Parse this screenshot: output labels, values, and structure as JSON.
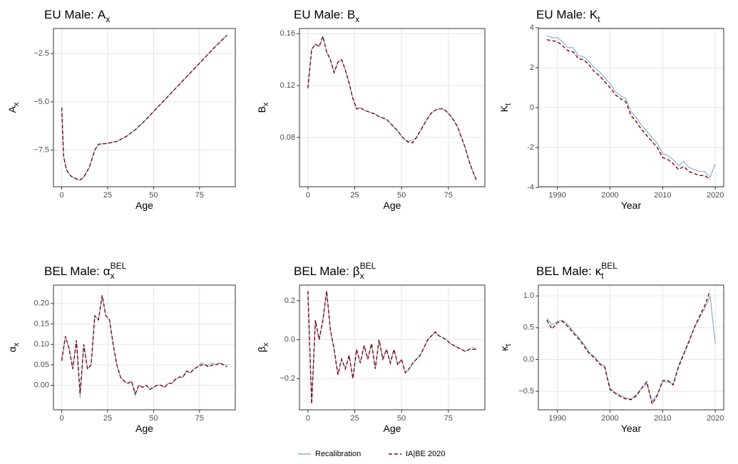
{
  "chart_data": [
    {
      "type": "line",
      "title": "EU Male:",
      "title_symbol": "A",
      "title_sub": "x",
      "xlabel": "Age",
      "ylabel_symbol": "A",
      "ylabel_sub": "x",
      "x": [
        0,
        1,
        2,
        3,
        5,
        8,
        10,
        12,
        15,
        18,
        20,
        25,
        30,
        35,
        40,
        45,
        50,
        55,
        60,
        65,
        70,
        75,
        80,
        85,
        90
      ],
      "xlim": [
        -4.5,
        94.5
      ],
      "xticks": [
        0,
        25,
        50,
        75
      ],
      "ylim": [
        -9.4,
        -1.2
      ],
      "yticks": [
        {
          "value": -7.5,
          "label": "−7.5"
        },
        {
          "value": -5,
          "label": "−5.0"
        },
        {
          "value": -2.5,
          "label": "−2.5"
        }
      ],
      "grid": true,
      "series": [
        {
          "name": "Recalibration",
          "color": "#7fb3d8",
          "linestyle": "solid",
          "values": [
            -5.3,
            -7.8,
            -8.3,
            -8.6,
            -8.85,
            -9.0,
            -9.05,
            -8.9,
            -8.4,
            -7.5,
            -7.2,
            -7.15,
            -7.05,
            -6.8,
            -6.45,
            -6.0,
            -5.5,
            -5.0,
            -4.5,
            -4.0,
            -3.5,
            -3.0,
            -2.5,
            -2.0,
            -1.55
          ]
        },
        {
          "name": "IA|BE 2020",
          "color": "#8b0000",
          "linestyle": "dashed",
          "values": [
            -5.3,
            -7.8,
            -8.3,
            -8.6,
            -8.85,
            -9.0,
            -9.05,
            -8.9,
            -8.4,
            -7.5,
            -7.2,
            -7.15,
            -7.05,
            -6.8,
            -6.45,
            -6.0,
            -5.5,
            -5.0,
            -4.5,
            -4.0,
            -3.5,
            -3.0,
            -2.5,
            -2.0,
            -1.55
          ]
        }
      ]
    },
    {
      "type": "line",
      "title": "EU Male:",
      "title_symbol": "B",
      "title_sub": "x",
      "xlabel": "Age",
      "ylabel_symbol": "B",
      "ylabel_sub": "x",
      "x": [
        0,
        2,
        4,
        6,
        8,
        10,
        12,
        14,
        16,
        18,
        20,
        22,
        24,
        26,
        28,
        30,
        32,
        34,
        36,
        38,
        40,
        42,
        44,
        46,
        48,
        50,
        52,
        54,
        56,
        58,
        60,
        62,
        64,
        66,
        68,
        70,
        72,
        74,
        76,
        78,
        80,
        82,
        84,
        86,
        88,
        90
      ],
      "xlim": [
        -4.5,
        94.5
      ],
      "xticks": [
        0,
        25,
        50,
        75
      ],
      "ylim": [
        0.042,
        0.164
      ],
      "yticks": [
        0.08,
        0.12,
        0.16
      ],
      "grid": true,
      "series": [
        {
          "name": "Recalibration",
          "color": "#7fb3d8",
          "linestyle": "solid",
          "values": [
            0.118,
            0.148,
            0.152,
            0.15,
            0.158,
            0.146,
            0.14,
            0.13,
            0.138,
            0.14,
            0.132,
            0.122,
            0.11,
            0.102,
            0.103,
            0.101,
            0.1,
            0.099,
            0.098,
            0.096,
            0.095,
            0.094,
            0.091,
            0.088,
            0.085,
            0.081,
            0.078,
            0.077,
            0.078,
            0.08,
            0.085,
            0.09,
            0.095,
            0.099,
            0.101,
            0.102,
            0.102,
            0.1,
            0.097,
            0.093,
            0.088,
            0.08,
            0.072,
            0.062,
            0.054,
            0.047
          ]
        },
        {
          "name": "IA|BE 2020",
          "color": "#8b0000",
          "linestyle": "dashed",
          "values": [
            0.118,
            0.148,
            0.152,
            0.15,
            0.158,
            0.146,
            0.14,
            0.13,
            0.138,
            0.14,
            0.132,
            0.122,
            0.11,
            0.102,
            0.103,
            0.101,
            0.1,
            0.099,
            0.098,
            0.096,
            0.095,
            0.094,
            0.091,
            0.088,
            0.085,
            0.081,
            0.078,
            0.076,
            0.076,
            0.08,
            0.085,
            0.09,
            0.095,
            0.099,
            0.101,
            0.102,
            0.102,
            0.1,
            0.097,
            0.093,
            0.088,
            0.08,
            0.072,
            0.062,
            0.054,
            0.047
          ]
        }
      ]
    },
    {
      "type": "line",
      "title": "EU Male:",
      "title_symbol": "K",
      "title_sub": "t",
      "xlabel": "Year",
      "ylabel_symbol": "K",
      "ylabel_sub": "t",
      "x": [
        1988,
        1989,
        1990,
        1991,
        1992,
        1993,
        1994,
        1995,
        1996,
        1997,
        1998,
        1999,
        2000,
        2001,
        2002,
        2003,
        2004,
        2005,
        2006,
        2007,
        2008,
        2009,
        2010,
        2011,
        2012,
        2013,
        2014,
        2015,
        2016,
        2017,
        2018,
        2019,
        2020
      ],
      "xlim": [
        1986.4,
        2021.6
      ],
      "xticks": [
        1990,
        2000,
        2010,
        2020
      ],
      "ylim": [
        -3.96,
        3.96
      ],
      "yticks": [
        -4,
        -2,
        0,
        2,
        4
      ],
      "grid": true,
      "series": [
        {
          "name": "Recalibration",
          "color": "#7fb3d8",
          "linestyle": "solid",
          "values": [
            3.6,
            3.5,
            3.5,
            3.3,
            3.0,
            3.0,
            2.6,
            2.55,
            2.3,
            2.0,
            1.8,
            1.5,
            1.2,
            0.8,
            0.6,
            0.45,
            -0.2,
            -0.5,
            -0.9,
            -1.2,
            -1.5,
            -1.8,
            -2.3,
            -2.4,
            -2.6,
            -2.9,
            -2.7,
            -3.0,
            -3.1,
            -3.2,
            -3.2,
            -3.5,
            -2.8
          ]
        },
        {
          "name": "IA|BE 2020",
          "color": "#8b0000",
          "linestyle": "dashed",
          "values": [
            3.4,
            3.35,
            3.3,
            3.1,
            2.85,
            2.8,
            2.45,
            2.4,
            2.15,
            1.8,
            1.6,
            1.3,
            1.0,
            0.65,
            0.45,
            0.3,
            -0.4,
            -0.7,
            -1.1,
            -1.4,
            -1.7,
            -2.0,
            -2.5,
            -2.6,
            -2.8,
            -3.1,
            -2.95,
            -3.2,
            -3.3,
            -3.4,
            -3.4,
            -3.6,
            null
          ]
        }
      ]
    },
    {
      "type": "line",
      "title": "BEL Male:",
      "title_symbol": "α",
      "title_sub": "x",
      "title_sup": "BEL",
      "xlabel": "Age",
      "ylabel_symbol": "α",
      "ylabel_sub": "x",
      "x": [
        0,
        2,
        4,
        6,
        8,
        10,
        12,
        14,
        16,
        18,
        20,
        22,
        24,
        26,
        28,
        30,
        32,
        34,
        36,
        38,
        40,
        42,
        44,
        46,
        48,
        50,
        52,
        54,
        56,
        58,
        60,
        62,
        64,
        66,
        68,
        70,
        72,
        74,
        76,
        78,
        80,
        82,
        84,
        86,
        88,
        90
      ],
      "xlim": [
        -4.5,
        94.5
      ],
      "xticks": [
        0,
        25,
        50,
        75
      ],
      "ylim": [
        -0.06,
        0.245
      ],
      "yticks": [
        {
          "value": 0,
          "label": "0.00"
        },
        0.05,
        {
          "value": 0.1,
          "label": "0.10"
        },
        0.15,
        {
          "value": 0.2,
          "label": "0.20"
        }
      ],
      "grid": true,
      "series": [
        {
          "name": "Recalibration",
          "color": "#7fb3d8",
          "linestyle": "solid",
          "values": [
            0.06,
            0.12,
            0.09,
            0.04,
            0.11,
            -0.03,
            0.1,
            0.04,
            0.05,
            0.17,
            0.16,
            0.22,
            0.17,
            0.16,
            0.1,
            0.05,
            0.02,
            0.01,
            0.005,
            0.01,
            -0.025,
            0.0,
            -0.005,
            0.0,
            -0.01,
            -0.005,
            0.0,
            0.0,
            -0.005,
            0.005,
            0.005,
            0.015,
            0.02,
            0.02,
            0.035,
            0.03,
            0.04,
            0.045,
            0.055,
            0.05,
            0.05,
            0.055,
            0.05,
            0.055,
            0.05,
            0.05
          ]
        },
        {
          "name": "IA|BE 2020",
          "color": "#8b0000",
          "linestyle": "dashed",
          "values": [
            0.06,
            0.12,
            0.09,
            0.04,
            0.11,
            -0.02,
            0.1,
            0.04,
            0.05,
            0.17,
            0.16,
            0.22,
            0.17,
            0.16,
            0.1,
            0.05,
            0.02,
            0.01,
            0.005,
            0.01,
            -0.02,
            0.0,
            -0.005,
            0.0,
            -0.01,
            -0.005,
            0.0,
            0.0,
            -0.005,
            0.005,
            0.005,
            0.015,
            0.02,
            0.02,
            0.035,
            0.03,
            0.04,
            0.045,
            0.05,
            0.05,
            0.045,
            0.05,
            0.05,
            0.055,
            0.05,
            0.045
          ]
        }
      ]
    },
    {
      "type": "line",
      "title": "BEL Male:",
      "title_symbol": "β",
      "title_sub": "x",
      "title_sup": "BEL",
      "xlabel": "Age",
      "ylabel_symbol": "β",
      "ylabel_sub": "x",
      "x": [
        0,
        2,
        4,
        6,
        8,
        10,
        12,
        14,
        16,
        18,
        20,
        22,
        24,
        26,
        28,
        30,
        32,
        34,
        36,
        38,
        40,
        42,
        44,
        46,
        48,
        50,
        52,
        54,
        56,
        58,
        60,
        62,
        64,
        66,
        68,
        70,
        72,
        74,
        76,
        78,
        80,
        82,
        84,
        86,
        88,
        90
      ],
      "xlim": [
        -4.5,
        94.5
      ],
      "xticks": [
        0,
        25,
        50,
        75
      ],
      "ylim": [
        -0.36,
        0.28
      ],
      "yticks": [
        {
          "value": -0.2,
          "label": "−0.2"
        },
        {
          "value": 0,
          "label": "0.0"
        },
        0.2
      ],
      "grid": true,
      "series": [
        {
          "name": "Recalibration",
          "color": "#7fb3d8",
          "linestyle": "solid",
          "values": [
            0.25,
            -0.33,
            0.1,
            0.0,
            0.1,
            0.25,
            0.05,
            -0.05,
            -0.18,
            -0.1,
            -0.15,
            -0.08,
            -0.2,
            -0.05,
            -0.12,
            -0.03,
            -0.1,
            -0.02,
            -0.15,
            0.0,
            -0.1,
            -0.05,
            -0.12,
            -0.05,
            -0.13,
            -0.1,
            -0.17,
            -0.15,
            -0.12,
            -0.1,
            -0.08,
            -0.04,
            0.0,
            0.02,
            0.04,
            0.02,
            0.01,
            0.0,
            -0.02,
            -0.03,
            -0.04,
            -0.05,
            -0.06,
            -0.05,
            -0.04,
            -0.05
          ]
        },
        {
          "name": "IA|BE 2020",
          "color": "#8b0000",
          "linestyle": "dashed",
          "values": [
            0.25,
            -0.33,
            0.1,
            0.0,
            0.1,
            0.25,
            0.05,
            -0.05,
            -0.18,
            -0.1,
            -0.15,
            -0.08,
            -0.2,
            -0.05,
            -0.12,
            -0.03,
            -0.1,
            -0.02,
            -0.15,
            0.0,
            -0.1,
            -0.05,
            -0.12,
            -0.05,
            -0.13,
            -0.1,
            -0.17,
            -0.15,
            -0.12,
            -0.1,
            -0.08,
            -0.04,
            0.0,
            0.02,
            0.04,
            0.02,
            0.01,
            0.0,
            -0.02,
            -0.03,
            -0.04,
            -0.05,
            -0.06,
            -0.05,
            -0.05,
            -0.05
          ]
        }
      ]
    },
    {
      "type": "line",
      "title": "BEL Male:",
      "title_symbol": "κ",
      "title_sub": "t",
      "title_sup": "BEL",
      "xlabel": "Year",
      "ylabel_symbol": "κ",
      "ylabel_sub": "t",
      "x": [
        1988,
        1989,
        1990,
        1991,
        1992,
        1993,
        1994,
        1995,
        1996,
        1997,
        1998,
        1999,
        2000,
        2001,
        2002,
        2003,
        2004,
        2005,
        2006,
        2007,
        2008,
        2009,
        2010,
        2011,
        2012,
        2013,
        2014,
        2015,
        2016,
        2017,
        2018,
        2019,
        2020
      ],
      "xlim": [
        1986.4,
        2021.6
      ],
      "xticks": [
        1990,
        2000,
        2010,
        2020
      ],
      "ylim": [
        -0.79,
        1.17
      ],
      "yticks": [
        {
          "value": -0.5,
          "label": "−0.5"
        },
        {
          "value": 0,
          "label": "0.0"
        },
        0.5,
        {
          "value": 1,
          "label": "1.0"
        }
      ],
      "grid": true,
      "series": [
        {
          "name": "Recalibration",
          "color": "#7fb3d8",
          "linestyle": "solid",
          "values": [
            0.65,
            0.55,
            0.6,
            0.62,
            0.55,
            0.45,
            0.35,
            0.25,
            0.12,
            0.05,
            -0.05,
            -0.1,
            -0.45,
            -0.52,
            -0.57,
            -0.6,
            -0.62,
            -0.55,
            -0.45,
            -0.38,
            -0.65,
            -0.55,
            -0.35,
            -0.35,
            -0.38,
            -0.1,
            0.1,
            0.3,
            0.5,
            0.65,
            0.8,
            1.0,
            0.25
          ]
        },
        {
          "name": "IA|BE 2020",
          "color": "#8b0000",
          "linestyle": "dashed",
          "values": [
            0.62,
            0.48,
            0.58,
            0.6,
            0.52,
            0.42,
            0.33,
            0.22,
            0.1,
            0.03,
            -0.07,
            -0.12,
            -0.47,
            -0.53,
            -0.58,
            -0.62,
            -0.63,
            -0.57,
            -0.45,
            -0.35,
            -0.7,
            -0.56,
            -0.33,
            -0.33,
            -0.4,
            -0.12,
            0.08,
            0.28,
            0.5,
            0.68,
            0.85,
            1.08,
            null
          ]
        }
      ]
    }
  ]
}
